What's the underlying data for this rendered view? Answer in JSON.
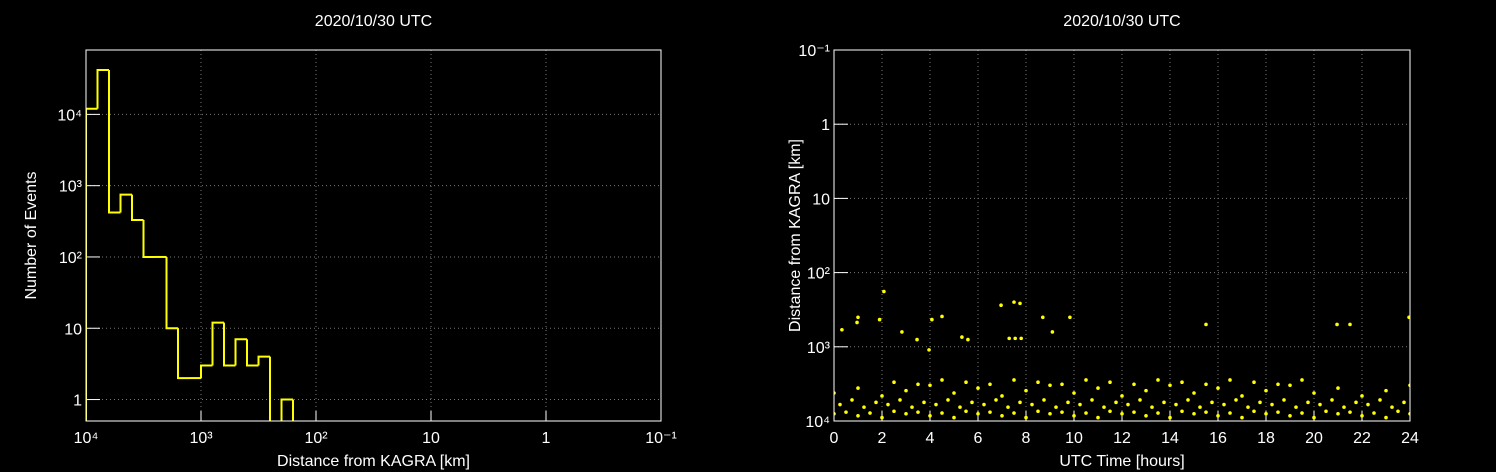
{
  "chart_data": [
    {
      "type": "histogram",
      "title": "2020/10/30 UTC",
      "xlabel": "Distance from KAGRA [km]",
      "ylabel": "Number of Events",
      "color": "#ffff00",
      "xlog": true,
      "ylog": true,
      "grid": true,
      "bins": [
        10000,
        7943,
        6310,
        5012,
        3981,
        3162,
        2512,
        1995,
        1585,
        1259,
        1000,
        794.3,
        631,
        501.2,
        398.1,
        316.2,
        251.2,
        199.5,
        158.5,
        125.9,
        100,
        79.43,
        63.1,
        50.12,
        39.81,
        31.62,
        25.12,
        19.95,
        15.85,
        12.59,
        10,
        7.943,
        6.31,
        5.012,
        3.981,
        3.162,
        2.512,
        1.995,
        1.585,
        1.259,
        1,
        0.7943,
        0.631,
        0.5012,
        0.3981,
        0.3162,
        0.2512,
        0.1995,
        0.1585,
        0.1259,
        0.1
      ],
      "values": [
        12000,
        42000,
        420,
        750,
        330,
        100,
        100,
        10,
        2,
        2,
        3,
        12,
        3,
        7,
        3,
        4,
        0,
        1,
        0,
        0,
        0,
        0,
        0,
        0,
        0,
        0,
        0,
        0,
        0,
        0,
        0,
        0,
        0,
        0,
        0,
        0,
        0,
        0,
        0,
        0,
        0,
        0,
        0,
        0,
        0,
        0,
        0,
        0,
        0,
        0
      ],
      "xlim": [
        10000,
        0.1
      ],
      "ylim": [
        0.5,
        80000
      ],
      "xticks": [
        {
          "value": 10000,
          "label": "10⁴"
        },
        {
          "value": 1000,
          "label": "10³"
        },
        {
          "value": 100,
          "label": "10²"
        },
        10,
        1,
        {
          "value": 0.1,
          "label": "10⁻¹"
        }
      ],
      "yticks": [
        1,
        10,
        {
          "value": 100,
          "label": "10²"
        },
        {
          "value": 1000,
          "label": "10³"
        },
        {
          "value": 10000,
          "label": "10⁴"
        }
      ]
    },
    {
      "type": "scatter",
      "title": "2020/10/30 UTC",
      "xlabel": "UTC Time [hours]",
      "ylabel": "Distance from KAGRA [km]",
      "color": "#ffff00",
      "ylog": true,
      "grid": true,
      "x": [
        0,
        0.5,
        1,
        1.5,
        2,
        2.5,
        3,
        3.5,
        4,
        4.5,
        5,
        5.5,
        6,
        6.5,
        7,
        7.5,
        8,
        8.5,
        9,
        9.5,
        10,
        10.5,
        11,
        11.5,
        12,
        12.5,
        13,
        13.5,
        14,
        14.5,
        15,
        15.5,
        16,
        16.5,
        17,
        17.5,
        18,
        18.5,
        19,
        19.5,
        20,
        20.5,
        21,
        21.5,
        22,
        22.5,
        23,
        23.5,
        24,
        0.25,
        0.75,
        1.25,
        1.75,
        2.25,
        2.75,
        3.25,
        3.75,
        4.25,
        4.75,
        5.25,
        5.75,
        6.25,
        6.75,
        7.25,
        7.75,
        8.25,
        8.75,
        9.25,
        9.75,
        10.25,
        10.75,
        11.25,
        11.75,
        12.25,
        12.75,
        13.25,
        13.75,
        14.25,
        14.75,
        15.25,
        15.75,
        16.25,
        16.75,
        17.25,
        17.75,
        18.25,
        18.75,
        19.25,
        19.75,
        20.25,
        20.75,
        21.25,
        21.75,
        22.25,
        22.75,
        23.25,
        23.75,
        0,
        1,
        2,
        3,
        4,
        5,
        6,
        7,
        8,
        9,
        10,
        11,
        12,
        13,
        14,
        15,
        16,
        17,
        18,
        19,
        20,
        21,
        22,
        23,
        24,
        2.5,
        3.5,
        4.5,
        5.5,
        6.5,
        7.5,
        8.5,
        9.5,
        10.5,
        11.5,
        12.5,
        13.5,
        14.5,
        15.5,
        16.5,
        17.5,
        18.5,
        19.5,
        0.33,
        0.96,
        1,
        1.9,
        2.08,
        2.83,
        3.46,
        3.96,
        4.08,
        4.5,
        5.33,
        5.58,
        6.96,
        7.5,
        7.75,
        7.3,
        7.55,
        7.8,
        8.7,
        9.1,
        9.83,
        15.5,
        20.96,
        21.5,
        23.96
      ],
      "values": [
        8000,
        7600,
        8500,
        7800,
        9000,
        7400,
        8000,
        7600,
        8500,
        7800,
        9000,
        7400,
        8000,
        7600,
        8500,
        7800,
        9000,
        7400,
        8000,
        7600,
        8500,
        7800,
        9000,
        7400,
        8000,
        7600,
        8500,
        7800,
        9000,
        7400,
        8000,
        7600,
        8500,
        7800,
        9000,
        7400,
        8000,
        7600,
        8500,
        7800,
        9000,
        7400,
        8000,
        7600,
        8500,
        7800,
        9000,
        7400,
        8000,
        6000,
        5200,
        6500,
        5600,
        6000,
        5200,
        6500,
        5600,
        6000,
        5200,
        6500,
        5600,
        6000,
        5200,
        6500,
        5600,
        6000,
        5200,
        6500,
        5600,
        6000,
        5200,
        6500,
        5600,
        6000,
        5200,
        6500,
        5600,
        6000,
        5200,
        6500,
        5600,
        6000,
        5200,
        6500,
        5600,
        6000,
        5200,
        6500,
        5600,
        6000,
        5200,
        6500,
        5600,
        6000,
        5200,
        6500,
        5600,
        4200,
        3600,
        4600,
        3900,
        3300,
        4200,
        3600,
        4600,
        3900,
        3300,
        4200,
        3600,
        4600,
        3900,
        3300,
        4200,
        3600,
        4600,
        3900,
        3300,
        4200,
        3600,
        4600,
        3900,
        3300,
        3000,
        3200,
        2800,
        3000,
        3200,
        2800,
        3000,
        3200,
        2800,
        3000,
        3200,
        2800,
        3000,
        3200,
        2800,
        3000,
        3200,
        2800,
        590,
        470,
        400,
        430,
        180,
        630,
        800,
        1100,
        430,
        390,
        740,
        800,
        275,
        250,
        260,
        770,
        770,
        770,
        400,
        630,
        400,
        500,
        500,
        500,
        400
      ],
      "xlim": [
        0,
        24
      ],
      "ylim": [
        10000,
        0.1
      ],
      "xticks": [
        0,
        2,
        4,
        6,
        8,
        10,
        12,
        14,
        16,
        18,
        20,
        22,
        24
      ],
      "yticks": [
        {
          "value": 0.1,
          "label": "10⁻¹"
        },
        1,
        10,
        {
          "value": 100,
          "label": "10²"
        },
        {
          "value": 1000,
          "label": "10³"
        },
        {
          "value": 10000,
          "label": "10⁴"
        }
      ]
    }
  ]
}
